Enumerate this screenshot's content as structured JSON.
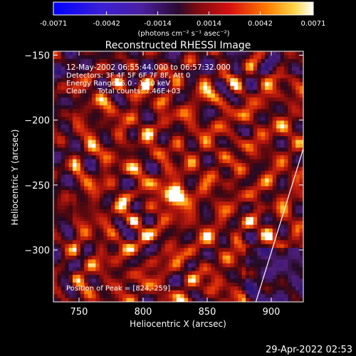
{
  "colorbar": {
    "ticks": [
      "-0.0071",
      "-0.0042",
      "-0.0014",
      "0.0014",
      "0.0042",
      "0.0071"
    ],
    "unit_label": "(photons cm⁻² s⁻¹ asec⁻²)",
    "range": [
      -0.0071,
      0.0071
    ]
  },
  "chart_data": {
    "type": "heatmap",
    "title": "Reconstructed RHESSI Image",
    "xlabel": "Heliocentric X (arcsec)",
    "ylabel": "Heliocentric Y (arcsec)",
    "xlim": [
      730,
      925
    ],
    "ylim": [
      -340,
      -147
    ],
    "xticks": [
      750,
      800,
      850,
      900
    ],
    "xtick_labels": [
      "750",
      "800",
      "850",
      "900"
    ],
    "yticks": [
      -150,
      -200,
      -250,
      -300
    ],
    "ytick_labels": [
      "−150",
      "−200",
      "−250",
      "−300"
    ],
    "peak": [
      824,
      -259
    ],
    "annotations": [
      "12-May-2002 06:55:44.000 to 06:57:32.000",
      "Detectors: 3F 4F 5F 6F 7F 8F, Att 0",
      "Energy Range: 6.0 - 12.0 keV",
      "Clean     Total counts: 7.46E+03"
    ],
    "peak_label": "Position of Peak = [824,-259]",
    "limb_line": [
      [
        888,
        -340
      ],
      [
        925,
        -222
      ]
    ]
  },
  "timestamp": "29-Apr-2022 02:53"
}
